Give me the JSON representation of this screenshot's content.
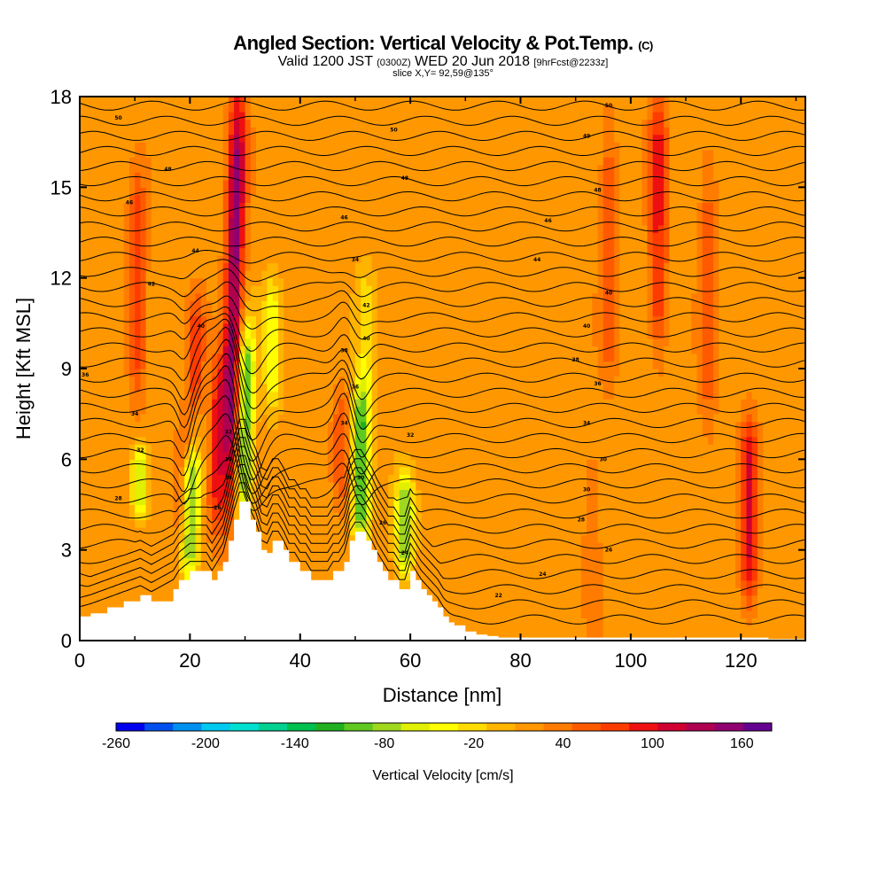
{
  "header": {
    "title": "Angled Section: Vertical Velocity & Pot.Temp.",
    "title_unit": "(C)",
    "valid_prefix": "Valid 1200 JST",
    "valid_z": "(0300Z)",
    "valid_date": "WED 20 Jun 2018",
    "valid_fcst": "[9hrFcst@2233z]",
    "slice": "slice X,Y= 92,59@135°"
  },
  "chart_data": {
    "type": "heatmap",
    "xlabel": "Distance [nm]",
    "ylabel": "Height [Kft MSL]",
    "xlim": [
      0,
      131.7
    ],
    "ylim": [
      0,
      18
    ],
    "xticks": [
      "0",
      "20",
      "40",
      "60",
      "80",
      "100",
      "120"
    ],
    "yticks": [
      "0",
      "3",
      "6",
      "9",
      "12",
      "15",
      "18"
    ],
    "colorbar": {
      "label": "Vertical Velocity [cm/s]",
      "min": -260,
      "max": 180,
      "step": 20,
      "tick_labels": [
        "-260",
        "-200",
        "-140",
        "-80",
        "-20",
        "40",
        "100",
        "160"
      ],
      "colors": [
        "#0000f0",
        "#0050f0",
        "#0090f0",
        "#00c8f0",
        "#00e0d0",
        "#00d090",
        "#00c050",
        "#20b020",
        "#60c820",
        "#a0d820",
        "#e0f000",
        "#ffff00",
        "#ffdc00",
        "#ffb400",
        "#ff9800",
        "#ff7c00",
        "#ff5a00",
        "#ff3c00",
        "#ee1010",
        "#d00030",
        "#b00050",
        "#900070",
        "#640090"
      ]
    },
    "background_value": 30,
    "updraft_cores": [
      {
        "x": 28,
        "y0": 5,
        "y1": 18,
        "peak": 170
      },
      {
        "x": 25,
        "y0": 4,
        "y1": 9,
        "peak": 110
      },
      {
        "x": 10.5,
        "y0": 8.5,
        "y1": 15,
        "peak": 95
      },
      {
        "x": 21,
        "y0": 8,
        "y1": 11,
        "peak": 85
      },
      {
        "x": 19,
        "y0": 3.5,
        "y1": 7,
        "peak": 80
      },
      {
        "x": 47.5,
        "y0": 5,
        "y1": 8,
        "peak": 75
      },
      {
        "x": 105,
        "y0": 10,
        "y1": 18,
        "peak": 105
      },
      {
        "x": 96,
        "y0": 9,
        "y1": 17,
        "peak": 75
      },
      {
        "x": 114,
        "y0": 7,
        "y1": 16,
        "peak": 70
      },
      {
        "x": 121.5,
        "y0": 1.5,
        "y1": 7,
        "peak": 120
      },
      {
        "x": 93,
        "y0": 1,
        "y1": 6,
        "peak": 60
      }
    ],
    "downdraft_cores": [
      {
        "x": 30,
        "y0": 4.5,
        "y1": 10,
        "peak": -100
      },
      {
        "x": 35,
        "y0": 8,
        "y1": 11.5,
        "peak": -40
      },
      {
        "x": 51,
        "y0": 3.5,
        "y1": 8,
        "peak": -110
      },
      {
        "x": 20,
        "y0": 2.5,
        "y1": 6,
        "peak": -95
      },
      {
        "x": 59,
        "y0": 2.5,
        "y1": 5,
        "peak": -80
      },
      {
        "x": 11,
        "y0": 4.5,
        "y1": 6,
        "peak": -60
      },
      {
        "x": 52,
        "y0": 8,
        "y1": 12,
        "peak": -10
      }
    ],
    "theta_contour_labels": [
      {
        "x": 7,
        "y": 17.3,
        "text": "50"
      },
      {
        "x": 57,
        "y": 16.9,
        "text": "50"
      },
      {
        "x": 96,
        "y": 17.7,
        "text": "50"
      },
      {
        "x": 92,
        "y": 16.7,
        "text": "49"
      },
      {
        "x": 16,
        "y": 15.6,
        "text": "48"
      },
      {
        "x": 59,
        "y": 15.3,
        "text": "48"
      },
      {
        "x": 94,
        "y": 14.9,
        "text": "48"
      },
      {
        "x": 9,
        "y": 14.5,
        "text": "46"
      },
      {
        "x": 48,
        "y": 14.0,
        "text": "46"
      },
      {
        "x": 85,
        "y": 13.9,
        "text": "46"
      },
      {
        "x": 21,
        "y": 12.9,
        "text": "44"
      },
      {
        "x": 50,
        "y": 12.6,
        "text": "34"
      },
      {
        "x": 83,
        "y": 12.6,
        "text": "44"
      },
      {
        "x": 13,
        "y": 11.8,
        "text": "42"
      },
      {
        "x": 52,
        "y": 11.1,
        "text": "42"
      },
      {
        "x": 96,
        "y": 11.5,
        "text": "40"
      },
      {
        "x": 22,
        "y": 10.4,
        "text": "40"
      },
      {
        "x": 52,
        "y": 10.0,
        "text": "40"
      },
      {
        "x": 92,
        "y": 10.4,
        "text": "40"
      },
      {
        "x": 48,
        "y": 9.6,
        "text": "38"
      },
      {
        "x": 90,
        "y": 9.3,
        "text": "38"
      },
      {
        "x": 1,
        "y": 8.8,
        "text": "36"
      },
      {
        "x": 50,
        "y": 8.4,
        "text": "36"
      },
      {
        "x": 94,
        "y": 8.5,
        "text": "36"
      },
      {
        "x": 10,
        "y": 7.5,
        "text": "34"
      },
      {
        "x": 48,
        "y": 7.2,
        "text": "34"
      },
      {
        "x": 92,
        "y": 7.2,
        "text": "34"
      },
      {
        "x": 27,
        "y": 6.9,
        "text": "32"
      },
      {
        "x": 60,
        "y": 6.8,
        "text": "32"
      },
      {
        "x": 11,
        "y": 6.3,
        "text": "32"
      },
      {
        "x": 27,
        "y": 6.0,
        "text": "30"
      },
      {
        "x": 95,
        "y": 6.0,
        "text": "30"
      },
      {
        "x": 27,
        "y": 5.4,
        "text": "28"
      },
      {
        "x": 51,
        "y": 5.4,
        "text": "30"
      },
      {
        "x": 92,
        "y": 5.0,
        "text": "30"
      },
      {
        "x": 7,
        "y": 4.7,
        "text": "28"
      },
      {
        "x": 25,
        "y": 4.4,
        "text": "26"
      },
      {
        "x": 91,
        "y": 4.0,
        "text": "28"
      },
      {
        "x": 55,
        "y": 3.9,
        "text": "26"
      },
      {
        "x": 96,
        "y": 3.0,
        "text": "26"
      },
      {
        "x": 59,
        "y": 2.9,
        "text": "24"
      },
      {
        "x": 84,
        "y": 2.2,
        "text": "24"
      },
      {
        "x": 76,
        "y": 1.5,
        "text": "22"
      }
    ],
    "terrain": {
      "x": [
        0,
        2,
        5,
        8,
        11,
        13,
        17,
        18,
        20,
        21,
        22,
        23,
        24,
        25,
        26,
        27,
        28,
        29,
        30,
        31,
        32,
        33,
        34,
        35,
        36,
        37,
        38,
        39,
        40,
        41,
        42,
        43,
        44,
        45,
        46,
        47,
        48,
        49,
        50,
        51,
        52,
        53,
        54,
        55,
        56,
        57,
        58,
        59,
        60,
        61,
        62,
        63,
        64,
        65,
        66,
        67,
        68,
        70,
        72,
        74,
        76,
        80,
        85,
        90,
        95,
        100,
        105,
        110,
        115,
        120,
        125,
        131.7
      ],
      "y": [
        0.8,
        0.9,
        1.1,
        1.3,
        1.5,
        1.3,
        1.7,
        2.0,
        2.3,
        2.3,
        2.3,
        2.3,
        2.0,
        2.3,
        2.6,
        3.3,
        4.0,
        4.6,
        4.6,
        4.0,
        3.6,
        3.0,
        2.9,
        3.3,
        3.3,
        3.0,
        2.6,
        2.6,
        2.3,
        2.3,
        2.0,
        2.0,
        2.0,
        2.0,
        2.3,
        2.3,
        2.6,
        3.3,
        3.6,
        3.6,
        3.3,
        3.0,
        2.6,
        2.3,
        2.0,
        2.0,
        1.7,
        1.7,
        2.3,
        2.0,
        1.7,
        1.5,
        1.3,
        1.1,
        0.8,
        0.6,
        0.5,
        0.3,
        0.2,
        0.15,
        0.1,
        0.1,
        0.1,
        0.1,
        0.1,
        0.1,
        0.1,
        0.1,
        0.1,
        0.1,
        0.05,
        0.0
      ]
    }
  }
}
